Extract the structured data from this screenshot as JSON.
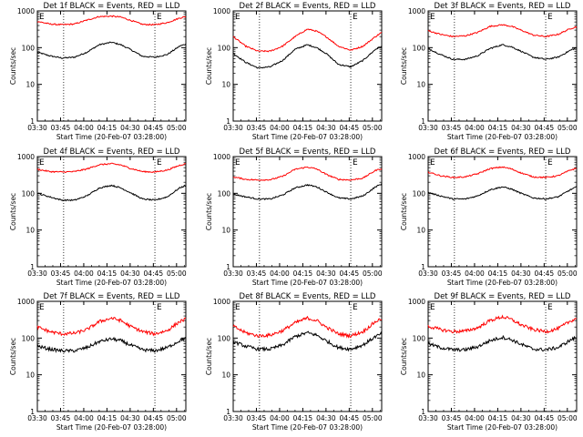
{
  "figure": {
    "common": {
      "x_tick_labels": [
        "03:30",
        "03:45",
        "04:00",
        "04:15",
        "04:30",
        "04:45",
        "05:00"
      ],
      "x_ticks_min": [
        210,
        225,
        240,
        255,
        270,
        285,
        300
      ],
      "xlim_min": [
        210,
        306
      ],
      "xlabel": "Start Time (20-Feb-07 03:28:00)",
      "ylabel": "Counts/sec",
      "y_tick_labels": [
        "1",
        "10",
        "100",
        "1000"
      ],
      "y_ticks": [
        1,
        10,
        100,
        1000
      ],
      "ylim": [
        1,
        1000
      ],
      "y_scale": "log",
      "vline_minutes": [
        227,
        286
      ],
      "marker_text": "E",
      "marker_minutes": [
        210,
        286
      ],
      "colors": {
        "events": "#000000",
        "lld": "#ff0000"
      }
    }
  },
  "chart_data": [
    {
      "type": "line",
      "title": "Det 1f BLACK = Events, RED = LLD",
      "x_min": [
        210,
        218,
        226,
        234,
        242,
        250,
        258,
        264,
        270,
        278,
        286,
        294,
        302,
        306
      ],
      "series": [
        {
          "name": "Events",
          "color": "#000000",
          "values": [
            75,
            60,
            52,
            55,
            75,
            120,
            140,
            120,
            90,
            58,
            55,
            65,
            110,
            125
          ]
        },
        {
          "name": "LLD",
          "color": "#ff0000",
          "values": [
            520,
            440,
            420,
            440,
            560,
            700,
            720,
            680,
            560,
            430,
            420,
            480,
            640,
            700
          ]
        }
      ]
    },
    {
      "type": "line",
      "title": "Det 2f BLACK = Events, RED = LLD",
      "x_min": [
        210,
        218,
        226,
        234,
        242,
        250,
        258,
        264,
        270,
        278,
        286,
        294,
        302,
        306
      ],
      "series": [
        {
          "name": "Events",
          "color": "#000000",
          "values": [
            70,
            40,
            28,
            30,
            45,
            90,
            120,
            100,
            70,
            35,
            30,
            45,
            90,
            110
          ]
        },
        {
          "name": "LLD",
          "color": "#ff0000",
          "values": [
            200,
            110,
            80,
            80,
            110,
            200,
            320,
            280,
            200,
            110,
            85,
            110,
            200,
            260
          ]
        }
      ]
    },
    {
      "type": "line",
      "title": "Det 3f BLACK = Events, RED = LLD",
      "x_min": [
        210,
        218,
        226,
        234,
        242,
        250,
        258,
        264,
        270,
        278,
        286,
        294,
        302,
        306
      ],
      "series": [
        {
          "name": "Events",
          "color": "#000000",
          "values": [
            95,
            65,
            48,
            48,
            60,
            95,
            120,
            105,
            80,
            55,
            48,
            55,
            85,
            100
          ]
        },
        {
          "name": "LLD",
          "color": "#ff0000",
          "values": [
            290,
            230,
            200,
            210,
            260,
            380,
            420,
            380,
            300,
            220,
            200,
            230,
            330,
            370
          ]
        }
      ]
    },
    {
      "type": "line",
      "title": "Det 4f BLACK = Events, RED = LLD",
      "x_min": [
        210,
        218,
        226,
        234,
        242,
        250,
        258,
        264,
        270,
        278,
        286,
        294,
        302,
        306
      ],
      "series": [
        {
          "name": "Events",
          "color": "#000000",
          "values": [
            100,
            80,
            65,
            65,
            85,
            140,
            165,
            140,
            105,
            70,
            65,
            80,
            140,
            165
          ]
        },
        {
          "name": "LLD",
          "color": "#ff0000",
          "values": [
            450,
            390,
            380,
            390,
            460,
            600,
            640,
            590,
            480,
            390,
            380,
            430,
            580,
            640
          ]
        }
      ]
    },
    {
      "type": "line",
      "title": "Det 5f BLACK = Events, RED = LLD",
      "x_min": [
        210,
        218,
        226,
        234,
        242,
        250,
        258,
        264,
        270,
        278,
        286,
        294,
        302,
        306
      ],
      "series": [
        {
          "name": "Events",
          "color": "#000000",
          "values": [
            95,
            80,
            70,
            70,
            90,
            140,
            170,
            150,
            110,
            75,
            70,
            85,
            150,
            180
          ]
        },
        {
          "name": "LLD",
          "color": "#ff0000",
          "values": [
            280,
            240,
            230,
            235,
            290,
            450,
            520,
            460,
            330,
            240,
            230,
            260,
            420,
            470
          ]
        }
      ]
    },
    {
      "type": "line",
      "title": "Det 6f BLACK = Events, RED = LLD",
      "x_min": [
        210,
        218,
        226,
        234,
        242,
        250,
        258,
        264,
        270,
        278,
        286,
        294,
        302,
        306
      ],
      "series": [
        {
          "name": "Events",
          "color": "#000000",
          "values": [
            105,
            85,
            70,
            70,
            85,
            125,
            150,
            130,
            100,
            75,
            70,
            80,
            125,
            150
          ]
        },
        {
          "name": "LLD",
          "color": "#ff0000",
          "values": [
            380,
            300,
            270,
            280,
            340,
            470,
            520,
            460,
            360,
            280,
            270,
            300,
            430,
            480
          ]
        }
      ]
    },
    {
      "type": "line",
      "title": "Det 7f BLACK = Events, RED = LLD",
      "x_min": [
        210,
        218,
        226,
        234,
        242,
        250,
        258,
        264,
        270,
        278,
        286,
        294,
        302,
        306
      ],
      "series": [
        {
          "name": "Events",
          "color": "#000000",
          "values": [
            60,
            50,
            45,
            45,
            55,
            80,
            95,
            85,
            65,
            48,
            45,
            55,
            85,
            100
          ]
        },
        {
          "name": "LLD",
          "color": "#ff0000",
          "values": [
            200,
            150,
            130,
            135,
            170,
            280,
            350,
            300,
            210,
            150,
            130,
            160,
            280,
            330
          ]
        }
      ]
    },
    {
      "type": "line",
      "title": "Det 8f BLACK = Events, RED = LLD",
      "x_min": [
        210,
        218,
        226,
        234,
        242,
        250,
        258,
        264,
        270,
        278,
        286,
        294,
        302,
        306
      ],
      "series": [
        {
          "name": "Events",
          "color": "#000000",
          "values": [
            80,
            60,
            50,
            50,
            65,
            110,
            140,
            120,
            85,
            55,
            50,
            65,
            110,
            130
          ]
        },
        {
          "name": "LLD",
          "color": "#ff0000",
          "values": [
            210,
            140,
            115,
            120,
            160,
            260,
            350,
            300,
            200,
            130,
            115,
            150,
            280,
            340
          ]
        }
      ]
    },
    {
      "type": "line",
      "title": "Det 9f BLACK = Events, RED = LLD",
      "x_min": [
        210,
        218,
        226,
        234,
        242,
        250,
        258,
        264,
        270,
        278,
        286,
        294,
        302,
        306
      ],
      "series": [
        {
          "name": "Events",
          "color": "#000000",
          "values": [
            70,
            55,
            48,
            48,
            58,
            85,
            105,
            90,
            68,
            50,
            48,
            55,
            88,
            105
          ]
        },
        {
          "name": "LLD",
          "color": "#ff0000",
          "values": [
            210,
            170,
            150,
            155,
            190,
            300,
            380,
            320,
            230,
            170,
            150,
            180,
            290,
            350
          ]
        }
      ]
    }
  ]
}
